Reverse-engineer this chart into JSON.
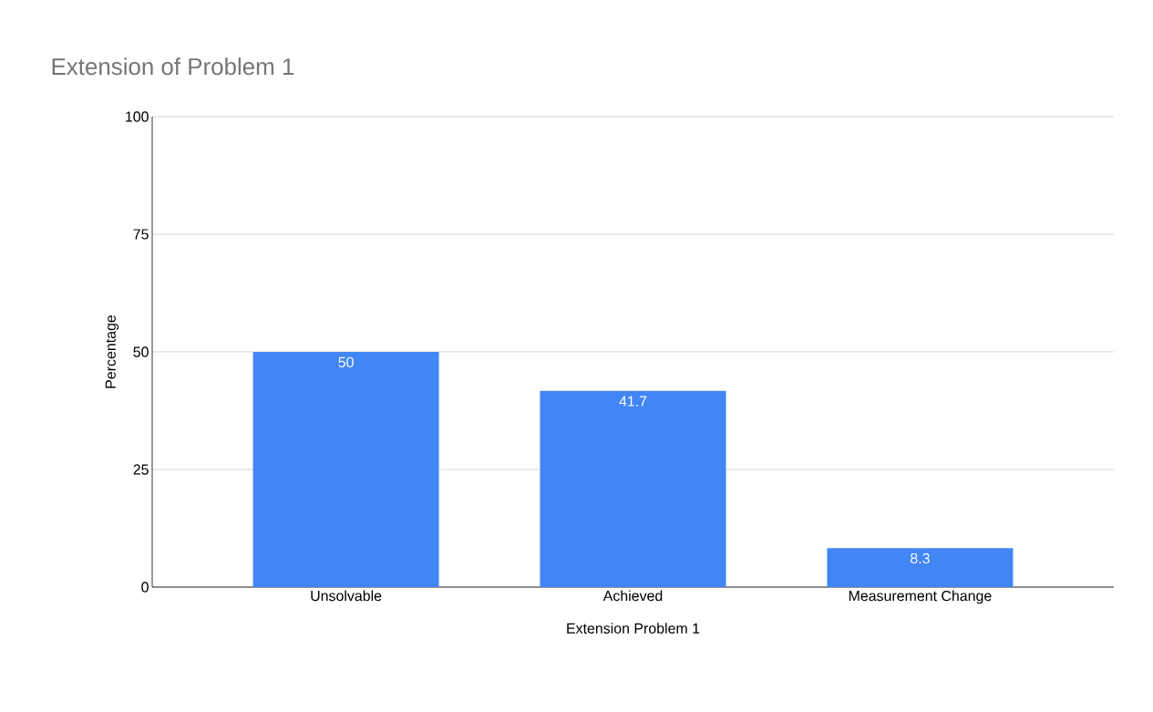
{
  "chart_data": {
    "type": "bar",
    "title": "Extension of Problem 1",
    "xlabel": "Extension Problem 1",
    "ylabel": "Percentage",
    "categories": [
      "Unsolvable",
      "Achieved",
      "Measurement Change"
    ],
    "values": [
      50,
      41.7,
      8.3
    ],
    "color": "#4285f4",
    "ylim": [
      0,
      100
    ],
    "yticks": [
      0,
      25,
      50,
      75,
      100
    ],
    "grid": "y",
    "data_labels": true
  }
}
